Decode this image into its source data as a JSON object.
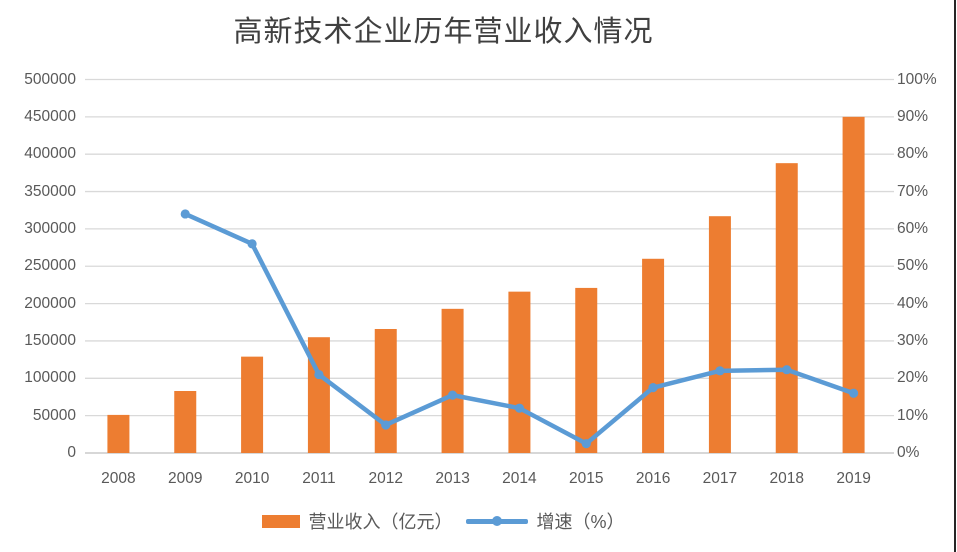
{
  "title": "高新技术企业历年营业收入情况",
  "legend": {
    "bar_label": "营业收入（亿元）",
    "line_label": "增速（%）"
  },
  "colors": {
    "bar": "#ED7D31",
    "line": "#5B9BD5",
    "grid": "#D9D9D9",
    "axis": "#BFBFBF",
    "text": "#595959",
    "title": "#404040",
    "border": "#262626"
  },
  "chart_data": {
    "type": "combo-bar-line",
    "title": "高新技术企业历年营业收入情况",
    "categories": [
      "2008",
      "2009",
      "2010",
      "2011",
      "2012",
      "2013",
      "2014",
      "2015",
      "2016",
      "2017",
      "2018",
      "2019"
    ],
    "series": [
      {
        "name": "营业收入（亿元）",
        "type": "bar",
        "axis": "left",
        "values": [
          51000,
          83000,
          129000,
          155000,
          166000,
          193000,
          216000,
          221000,
          260000,
          317000,
          388000,
          450000
        ]
      },
      {
        "name": "增速（%）",
        "type": "line",
        "axis": "right",
        "values": [
          null,
          64,
          56,
          21,
          7.5,
          15.5,
          12,
          2.5,
          17.5,
          22,
          22.3,
          16
        ]
      }
    ],
    "left_axis": {
      "min": 0,
      "max": 500000,
      "step": 50000,
      "tick_labels": [
        "0",
        "50000",
        "100000",
        "150000",
        "200000",
        "250000",
        "300000",
        "350000",
        "400000",
        "450000",
        "500000"
      ]
    },
    "right_axis": {
      "min": 0,
      "max": 100,
      "step": 10,
      "tick_labels": [
        "0%",
        "10%",
        "20%",
        "30%",
        "40%",
        "50%",
        "60%",
        "70%",
        "80%",
        "90%",
        "100%"
      ]
    },
    "grid": true,
    "legend_position": "bottom"
  }
}
